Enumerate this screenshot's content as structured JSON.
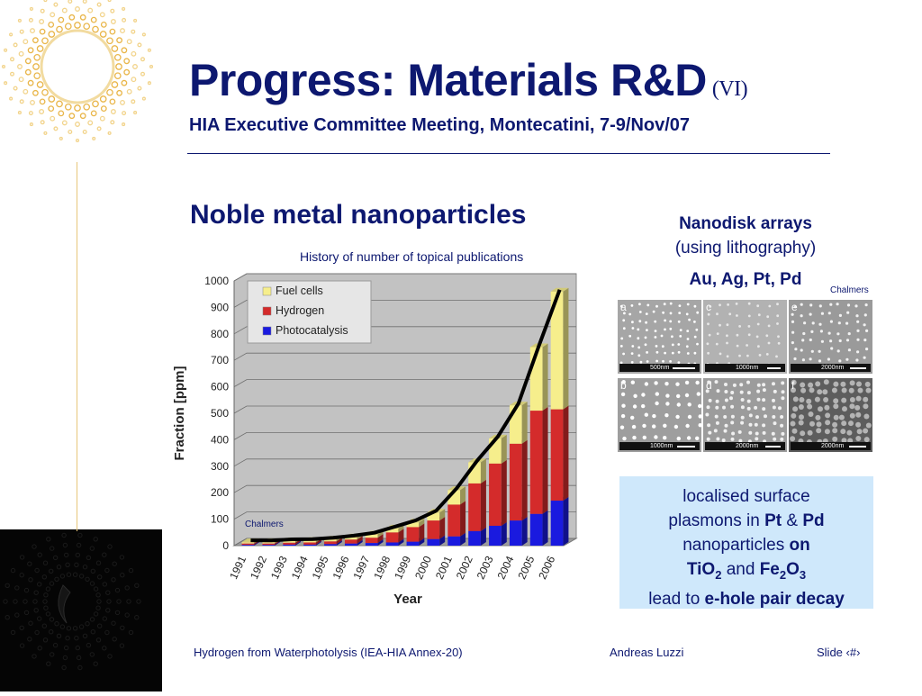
{
  "slide": {
    "title": "Progress: Materials R&D",
    "title_suffix": "(VI)",
    "subtitle": "HIA Executive Committee Meeting, Montecatini, 7-9/Nov/07",
    "section_heading": "Noble metal nanoparticles",
    "chart_caption": "History of number of topical publications",
    "chart_credit": "Chalmers"
  },
  "colors": {
    "title": "#0d1870",
    "fuel_cells": "#f6ee8c",
    "hydrogen": "#d42b2b",
    "photocatalysis": "#1a1adf",
    "plot_bg": "#c2c2c2",
    "box_bg": "#cfe8fb"
  },
  "chart_data": {
    "type": "bar",
    "stacked": true,
    "trend_line": true,
    "xlabel": "Year",
    "ylabel": "Fraction [ppm]",
    "ylim": [
      0,
      1000
    ],
    "yticks": [
      0,
      100,
      200,
      300,
      400,
      500,
      600,
      700,
      800,
      900,
      1000
    ],
    "grid": true,
    "legend_position": "top-left",
    "categories": [
      "1991",
      "1992",
      "1993",
      "1994",
      "1995",
      "1996",
      "1997",
      "1998",
      "1999",
      "2000",
      "2001",
      "2002",
      "2003",
      "2004",
      "2005",
      "2006"
    ],
    "series": [
      {
        "name": "Photocatalysis",
        "color": "#1a1adf",
        "values": [
          3,
          3,
          4,
          4,
          6,
          8,
          10,
          12,
          15,
          25,
          35,
          55,
          75,
          95,
          120,
          170
        ]
      },
      {
        "name": "Hydrogen",
        "color": "#d42b2b",
        "values": [
          5,
          5,
          7,
          8,
          10,
          15,
          20,
          38,
          55,
          70,
          120,
          180,
          235,
          290,
          390,
          345
        ]
      },
      {
        "name": "Fuel cells",
        "color": "#f6ee8c",
        "values": [
          5,
          5,
          6,
          6,
          7,
          8,
          12,
          15,
          18,
          30,
          55,
          80,
          95,
          145,
          240,
          445
        ]
      }
    ]
  },
  "nanodisk": {
    "title": "Nanodisk arrays",
    "subtitle": "(using lithography)",
    "metals": "Au, Ag, Pt, Pd",
    "credit": "Chalmers",
    "panels": [
      {
        "letter": "a",
        "scale": "500nm"
      },
      {
        "letter": "c",
        "scale": "1000nm"
      },
      {
        "letter": "e",
        "scale": "2000nm"
      },
      {
        "letter": "b",
        "scale": "1000nm"
      },
      {
        "letter": "d",
        "scale": "2000nm"
      },
      {
        "letter": "f",
        "scale": "2000nm"
      }
    ]
  },
  "plasmon_box": {
    "line1": "localised surface",
    "line2_pre": "plasmons in ",
    "line2_pt": "Pt",
    "line2_amp": " & ",
    "line2_pd": "Pd",
    "line3_pre": "nanoparticles ",
    "line3_on": "on",
    "tio": "TiO",
    "tio_sub": "2",
    "and": " and ",
    "fe": "Fe",
    "fe_sub": "2",
    "o": "O",
    "o_sub": "3",
    "line5_pre": "lead to ",
    "line5_b": "e-hole pair decay"
  },
  "footer": {
    "left": "Hydrogen from Waterphotolysis (IEA-HIA Annex-20)",
    "center": "Andreas Luzzi",
    "right": "Slide ‹#›"
  }
}
